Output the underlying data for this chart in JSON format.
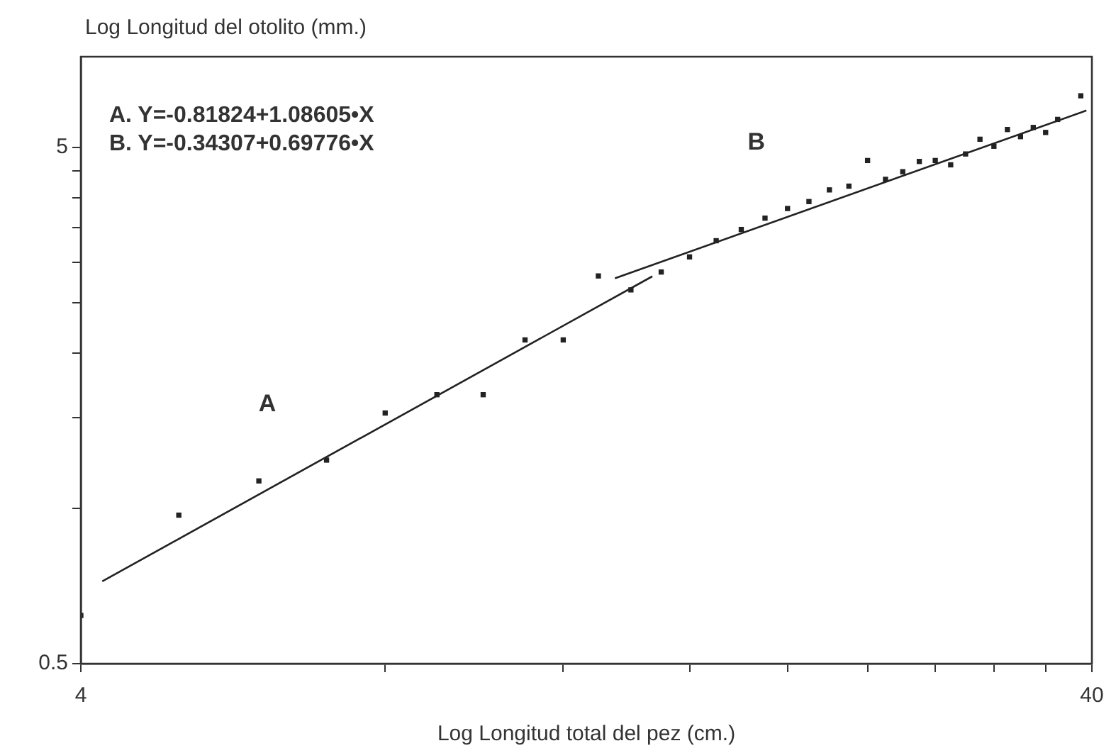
{
  "chart_data": {
    "type": "scatter",
    "xlabel": "Log Longitud total del pez (cm.)",
    "ylabel": "Log Longitud del otolito (mm.)",
    "log": "xy",
    "xlim": [
      4,
      40
    ],
    "ylim": [
      0.5,
      7.5
    ],
    "xticks": [
      4,
      {
        "value": 8,
        "label": null
      },
      {
        "value": 12,
        "label": null
      },
      {
        "value": 16,
        "label": null
      },
      {
        "value": 20,
        "label": null
      },
      {
        "value": 24,
        "label": null
      },
      {
        "value": 28,
        "label": null
      },
      {
        "value": 32,
        "label": null
      },
      {
        "value": 36,
        "label": null
      },
      40
    ],
    "yticks": [
      0.5,
      {
        "value": 1,
        "label": null
      },
      {
        "value": 1.5,
        "label": null
      },
      {
        "value": 2,
        "label": null
      },
      {
        "value": 2.5,
        "label": null
      },
      {
        "value": 3,
        "label": null
      },
      {
        "value": 3.5,
        "label": null
      },
      {
        "value": 4,
        "label": null
      },
      {
        "value": 4.5,
        "label": null
      },
      5
    ],
    "grid": false,
    "legend": false,
    "marker": "square",
    "series": [
      {
        "type": "scatter",
        "color": "#222222",
        "x": [
          4,
          5,
          6,
          7,
          8,
          9,
          10,
          11,
          12,
          13,
          14,
          15,
          16,
          17,
          18,
          19,
          20,
          21,
          22,
          23,
          24,
          25,
          26,
          27,
          28,
          29,
          30,
          31,
          32,
          33,
          34,
          35,
          36,
          37,
          39
        ],
        "values": [
          0.62,
          0.97,
          1.13,
          1.24,
          1.53,
          1.66,
          1.66,
          2.12,
          2.12,
          2.82,
          2.65,
          2.87,
          3.07,
          3.3,
          3.47,
          3.65,
          3.81,
          3.93,
          4.14,
          4.21,
          4.72,
          4.34,
          4.49,
          4.7,
          4.72,
          4.63,
          4.86,
          5.19,
          5.03,
          5.42,
          5.25,
          5.47,
          5.35,
          5.67,
          6.3
        ]
      },
      {
        "type": "line",
        "name": "A",
        "color": "#222222",
        "line_style": "solid",
        "marker": "none",
        "x": [
          4.2,
          14.7
        ],
        "values": [
          0.722,
          2.815
        ]
      },
      {
        "type": "line",
        "name": "B",
        "color": "#222222",
        "line_style": "solid",
        "marker": "none",
        "x": [
          13.5,
          39.5
        ],
        "values": [
          2.791,
          5.9
        ]
      }
    ],
    "annotations": [
      "A. Y=-0.81824+1.08605•X",
      "B. Y=-0.34307+0.69776•X"
    ]
  }
}
